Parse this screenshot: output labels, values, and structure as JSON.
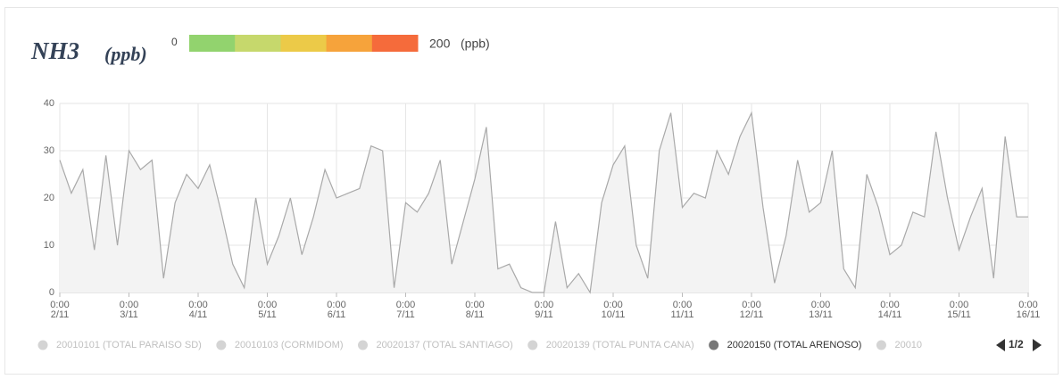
{
  "chart_data": {
    "type": "area",
    "title": "NH3",
    "unit": "(ppb)",
    "scale": {
      "min_label": "0",
      "max_label": "200",
      "unit": "(ppb)",
      "colors": [
        "#92d36e",
        "#c6d86c",
        "#ecca48",
        "#f6a33b",
        "#f56b3b"
      ]
    },
    "color": "#a9a9a9",
    "fill": "#f3f3f3",
    "x": [
      0,
      4,
      8,
      12,
      16,
      20,
      24,
      28,
      32,
      36,
      40,
      44,
      48,
      52,
      56,
      60,
      64,
      68,
      72,
      76,
      80,
      84,
      88,
      92,
      96,
      100,
      104,
      108,
      112,
      116,
      120,
      124,
      128,
      132,
      136,
      140,
      144,
      148,
      152,
      156,
      160,
      164,
      168,
      172,
      176,
      180,
      184,
      188,
      192,
      196,
      200,
      204,
      208,
      212,
      216,
      220,
      224,
      228,
      232,
      236,
      240,
      244,
      248,
      252,
      256,
      260,
      264,
      268,
      272,
      276,
      280,
      284,
      288,
      292,
      296,
      300,
      304,
      308,
      312,
      316,
      320,
      324,
      328,
      332,
      336
    ],
    "values": [
      28,
      21,
      26,
      9,
      29,
      10,
      30,
      26,
      28,
      3,
      19,
      25,
      22,
      27,
      17,
      6,
      1,
      20,
      6,
      12,
      20,
      8,
      16,
      26,
      20,
      21,
      22,
      31,
      30,
      1,
      19,
      17,
      21,
      28,
      6,
      15,
      24,
      35,
      5,
      6,
      1,
      0,
      0,
      15,
      1,
      4,
      0,
      19,
      27,
      31,
      10,
      3,
      30,
      38,
      18,
      21,
      20,
      30,
      25,
      33,
      38,
      18,
      2,
      12,
      28,
      17,
      19,
      30,
      5,
      1,
      25,
      18,
      8,
      10,
      17,
      16,
      34,
      20,
      9,
      16,
      22,
      3,
      33,
      16,
      16
    ],
    "xlim": [
      0,
      336
    ],
    "xticks": [
      {
        "value": 0,
        "label": "0:00"
      },
      {
        "value": 24,
        "label": "0:00"
      },
      {
        "value": 48,
        "label": "0:00"
      },
      {
        "value": 72,
        "label": "0:00"
      },
      {
        "value": 96,
        "label": "0:00"
      },
      {
        "value": 120,
        "label": "0:00"
      },
      {
        "value": 144,
        "label": "0:00"
      },
      {
        "value": 168,
        "label": "0:00"
      },
      {
        "value": 192,
        "label": "0:00"
      },
      {
        "value": 216,
        "label": "0:00"
      },
      {
        "value": 240,
        "label": "0:00"
      },
      {
        "value": 264,
        "label": "0:00"
      },
      {
        "value": 288,
        "label": "0:00"
      },
      {
        "value": 312,
        "label": "0:00"
      },
      {
        "value": 336,
        "label": "0:00"
      }
    ],
    "xtick_dates": [
      "2/11",
      "3/11",
      "4/11",
      "5/11",
      "6/11",
      "7/11",
      "8/11",
      "9/11",
      "10/11",
      "11/11",
      "12/11",
      "13/11",
      "14/11",
      "15/11",
      "16/11"
    ],
    "ylim": [
      0,
      40
    ],
    "yticks": [
      0,
      10,
      20,
      30,
      40
    ],
    "grid": true,
    "legend": [
      {
        "name": "20010101 (TOTAL PARAISO SD)",
        "active": false
      },
      {
        "name": "20010103 (CORMIDOM)",
        "active": false
      },
      {
        "name": "20020137 (TOTAL SANTIAGO)",
        "active": false
      },
      {
        "name": "20020139 (TOTAL PUNTA CANA)",
        "active": false
      },
      {
        "name": "20020150 (TOTAL ARENOSO)",
        "active": true
      },
      {
        "name": "20010",
        "active": false
      }
    ],
    "pager": "1/2"
  }
}
